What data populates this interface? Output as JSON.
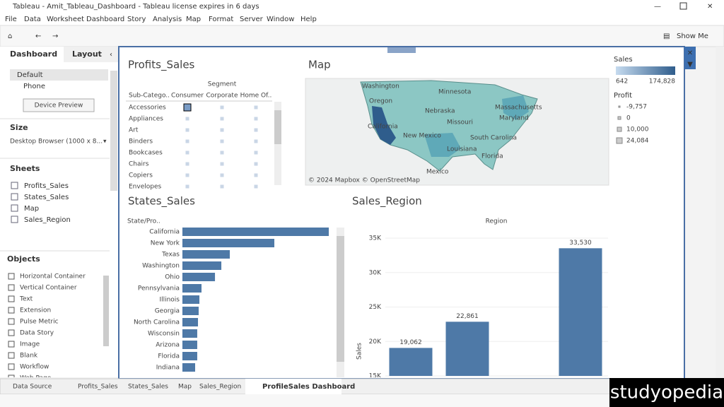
{
  "window_title": "Tableau - Amit_Tableau_Dashboard - Tableau license expires in 6 days",
  "menu": [
    "File",
    "Data",
    "Worksheet",
    "Dashboard",
    "Story",
    "Analysis",
    "Map",
    "Format",
    "Server",
    "Window",
    "Help"
  ],
  "toolbar": {
    "show_me": "Show Me"
  },
  "left_panel": {
    "tabs": [
      "Dashboard",
      "Layout"
    ],
    "devices": [
      "Default",
      "Phone"
    ],
    "device_preview": "Device Preview",
    "size_heading": "Size",
    "size_value": "Desktop Browser (1000 x 8...",
    "sheets_heading": "Sheets",
    "sheets": [
      "Profits_Sales",
      "States_Sales",
      "Map",
      "Sales_Region"
    ],
    "objects_heading": "Objects",
    "objects": [
      "Horizontal Container",
      "Vertical Container",
      "Text",
      "Extension",
      "Pulse Metric",
      "Data Story",
      "Image",
      "Blank",
      "Workflow",
      "Web Page"
    ]
  },
  "dashboard": {
    "profits_sales": {
      "title": "Profits_Sales",
      "column_header": "Segment",
      "row_header": "Sub-Catego..",
      "columns": [
        "Consumer",
        "Corporate",
        "Home Of.."
      ],
      "rows": [
        "Accessories",
        "Appliances",
        "Art",
        "Binders",
        "Bookcases",
        "Chairs",
        "Copiers",
        "Envelopes"
      ]
    },
    "map": {
      "title": "Map",
      "labels": [
        "Washington",
        "Oregon",
        "California",
        "Minnesota",
        "Nebraska",
        "Missouri",
        "New Mexico",
        "Massachusetts",
        "Maryland",
        "South Carolina",
        "Louisiana",
        "Florida",
        "Mexico"
      ],
      "attribution": "© 2024 Mapbox © OpenStreetMap"
    },
    "legend": {
      "sales_title": "Sales",
      "sales_range": [
        "642",
        "174,828"
      ],
      "profit_title": "Profit",
      "profit_values": [
        "-9,757",
        "0",
        "10,000",
        "24,084"
      ]
    }
  },
  "chart_data": [
    {
      "type": "hbar",
      "title": "States_Sales",
      "y_label": "State/Pro..",
      "color": "#4e79a7",
      "categories": [
        "California",
        "New York",
        "Texas",
        "Washington",
        "Ohio",
        "Pennsylvania",
        "Illinois",
        "Georgia",
        "North Carolina",
        "Wisconsin",
        "Arizona",
        "Florida",
        "Indiana"
      ],
      "values": [
        174828,
        109800,
        56600,
        46500,
        38900,
        22800,
        20300,
        19400,
        18600,
        17700,
        17700,
        17700,
        15200
      ]
    },
    {
      "type": "bar",
      "title": "Sales_Region",
      "x_label": "Region",
      "y_label": "Sales",
      "color": "#4e79a7",
      "categories": [
        null,
        null,
        null,
        null
      ],
      "values": [
        19062,
        22861,
        null,
        33530
      ],
      "value_labels": [
        "19,062",
        "22,861",
        null,
        "33,530"
      ],
      "ylim": [
        15000,
        36200
      ],
      "yticks": [
        {
          "value": 15000,
          "label": "15K"
        },
        {
          "value": 20000,
          "label": "20K"
        },
        {
          "value": 25000,
          "label": "25K"
        },
        {
          "value": 30000,
          "label": "30K"
        },
        {
          "value": 35000,
          "label": "35K"
        }
      ]
    }
  ],
  "tabs": [
    "Data Source",
    "Profits_Sales",
    "States_Sales",
    "Map",
    "Sales_Region",
    "ProfileSales Dashboard"
  ],
  "watermark": "studyopedia"
}
